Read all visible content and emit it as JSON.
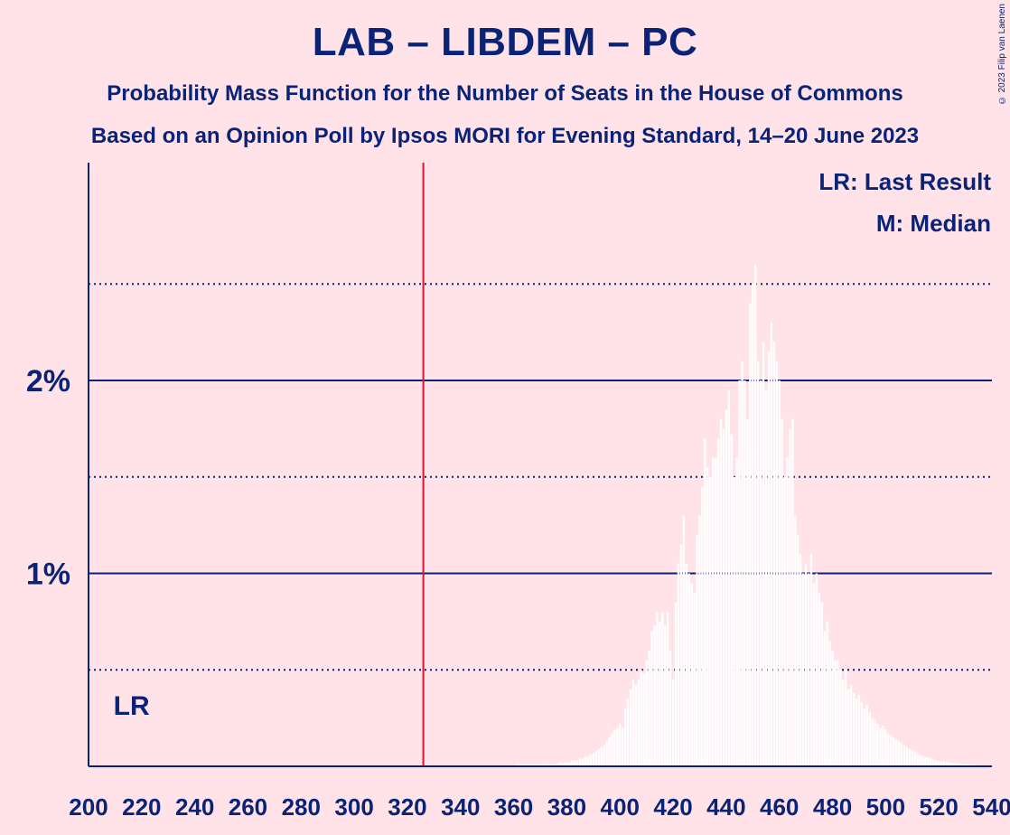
{
  "chart_data": {
    "type": "bar",
    "title": "LAB – LIBDEM – PC",
    "subtitle": "Probability Mass Function for the Number of Seats in the House of Commons",
    "subtitle2": "Based on an Opinion Poll by Ipsos MORI for Evening Standard, 14–20 June 2023",
    "copyright": "© 2023 Filip van Laenen",
    "xlim": [
      200,
      540
    ],
    "ylim": [
      0,
      3.0
    ],
    "x_ticks": [
      "200",
      "220",
      "240",
      "260",
      "280",
      "300",
      "320",
      "340",
      "360",
      "380",
      "400",
      "420",
      "440",
      "460",
      "480",
      "500",
      "520",
      "540"
    ],
    "y_ticks": [
      {
        "value": 1,
        "label": "1%"
      },
      {
        "value": 2,
        "label": "2%"
      }
    ],
    "y_dotted_gridlines": [
      0.5,
      1.5,
      2.5
    ],
    "majority_line_x": 326,
    "last_result": {
      "x": 206,
      "label": "LR"
    },
    "legend": [
      "LR: Last Result",
      "M: Median"
    ],
    "bar_color": "#ffffff",
    "colors": {
      "background": "#ffe3e8",
      "text": "#0a2377",
      "majority": "#e0102f",
      "bars": "#ffffff"
    },
    "seats": [
      361,
      362,
      363,
      364,
      365,
      366,
      367,
      368,
      369,
      370,
      371,
      372,
      373,
      374,
      375,
      376,
      377,
      378,
      379,
      380,
      381,
      382,
      383,
      384,
      385,
      386,
      387,
      388,
      389,
      390,
      391,
      392,
      393,
      394,
      395,
      396,
      397,
      398,
      399,
      400,
      401,
      402,
      403,
      404,
      405,
      406,
      407,
      408,
      409,
      410,
      411,
      412,
      413,
      414,
      415,
      416,
      417,
      418,
      419,
      420,
      421,
      422,
      423,
      424,
      425,
      426,
      427,
      428,
      429,
      430,
      431,
      432,
      433,
      434,
      435,
      436,
      437,
      438,
      439,
      440,
      441,
      442,
      443,
      444,
      445,
      446,
      447,
      448,
      449,
      450,
      451,
      452,
      453,
      454,
      455,
      456,
      457,
      458,
      459,
      460,
      461,
      462,
      463,
      464,
      465,
      466,
      467,
      468,
      469,
      470,
      471,
      472,
      473,
      474,
      475,
      476,
      477,
      478,
      479,
      480,
      481,
      482,
      483,
      484,
      485,
      486,
      487,
      488,
      489,
      490,
      491,
      492,
      493,
      494,
      495,
      496,
      497,
      498,
      499,
      500,
      501,
      502,
      503,
      504,
      505,
      506,
      507,
      508,
      509,
      510,
      511,
      512,
      513,
      514,
      515,
      516,
      517,
      518,
      519,
      520,
      521,
      522,
      523,
      524,
      525,
      526,
      527,
      528,
      529,
      530,
      531,
      532,
      533,
      534,
      535,
      536,
      537,
      538,
      539
    ],
    "values": [
      0.01,
      0.01,
      0.01,
      0.01,
      0.01,
      0.01,
      0.01,
      0.01,
      0.01,
      0.01,
      0.01,
      0.01,
      0.01,
      0.01,
      0.01,
      0.01,
      0.02,
      0.02,
      0.02,
      0.02,
      0.02,
      0.03,
      0.03,
      0.03,
      0.04,
      0.04,
      0.05,
      0.05,
      0.06,
      0.07,
      0.08,
      0.09,
      0.1,
      0.11,
      0.13,
      0.15,
      0.17,
      0.19,
      0.2,
      0.22,
      0.2,
      0.3,
      0.35,
      0.4,
      0.45,
      0.42,
      0.45,
      0.5,
      0.48,
      0.55,
      0.6,
      0.7,
      0.73,
      0.8,
      0.75,
      0.8,
      0.73,
      0.8,
      0.6,
      0.45,
      0.85,
      1.05,
      1.15,
      1.3,
      1.05,
      1.0,
      0.95,
      0.9,
      1.2,
      1.3,
      1.45,
      1.7,
      1.55,
      1.5,
      1.6,
      1.6,
      1.7,
      1.8,
      1.75,
      1.85,
      1.95,
      1.72,
      1.5,
      1.6,
      2.0,
      2.1,
      2.0,
      1.8,
      2.4,
      2.5,
      2.6,
      2.1,
      2.0,
      2.2,
      1.95,
      2.15,
      2.3,
      2.2,
      2.1,
      2.0,
      1.8,
      1.5,
      1.6,
      1.75,
      1.8,
      1.3,
      1.2,
      1.1,
      1.0,
      1.05,
      1.0,
      1.1,
      0.95,
      1.0,
      0.9,
      0.85,
      0.7,
      0.75,
      0.65,
      0.6,
      0.55,
      0.55,
      0.5,
      0.45,
      0.5,
      0.4,
      0.42,
      0.38,
      0.35,
      0.37,
      0.33,
      0.3,
      0.32,
      0.28,
      0.25,
      0.24,
      0.22,
      0.2,
      0.21,
      0.19,
      0.17,
      0.16,
      0.15,
      0.14,
      0.13,
      0.12,
      0.11,
      0.1,
      0.09,
      0.085,
      0.08,
      0.07,
      0.06,
      0.055,
      0.05,
      0.045,
      0.04,
      0.035,
      0.03,
      0.028,
      0.026,
      0.024,
      0.022,
      0.02,
      0.018,
      0.016,
      0.014,
      0.013,
      0.012,
      0.011,
      0.01,
      0.01,
      0.01
    ]
  }
}
